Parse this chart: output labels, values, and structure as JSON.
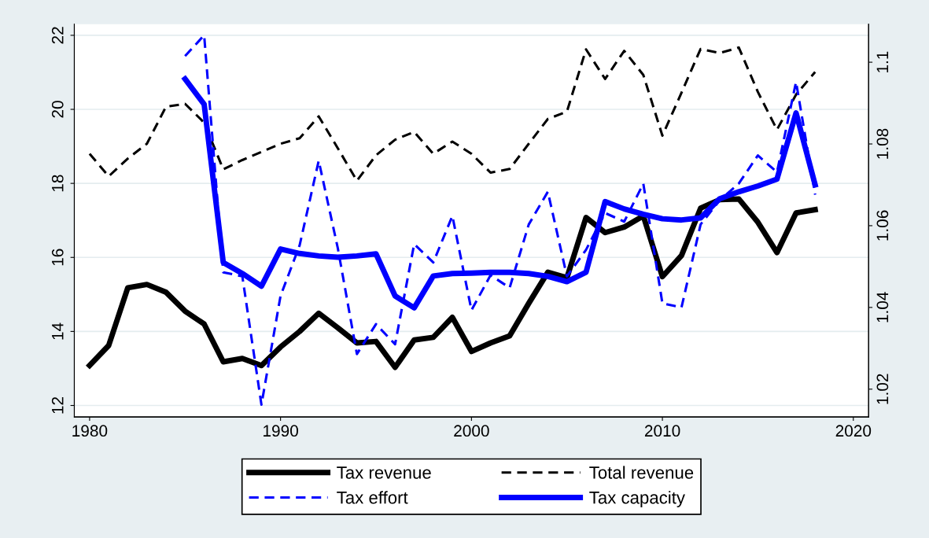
{
  "chart_data": {
    "type": "line",
    "x": [
      1980,
      1981,
      1982,
      1983,
      1984,
      1985,
      1986,
      1987,
      1988,
      1989,
      1990,
      1991,
      1992,
      1993,
      1994,
      1995,
      1996,
      1997,
      1998,
      1999,
      2000,
      2001,
      2002,
      2003,
      2004,
      2005,
      2006,
      2007,
      2008,
      2009,
      2010,
      2011,
      2012,
      2013,
      2014,
      2015,
      2016,
      2017,
      2018
    ],
    "series": [
      {
        "name": "Tax revenue",
        "color": "#000000",
        "line_style": "solid",
        "values": [
          13.08,
          13.62,
          15.18,
          15.27,
          15.06,
          14.55,
          14.2,
          13.18,
          13.27,
          13.08,
          13.58,
          14.0,
          14.49,
          14.1,
          13.69,
          13.73,
          13.03,
          13.77,
          13.84,
          14.38,
          13.46,
          13.69,
          13.88,
          14.76,
          15.6,
          15.45,
          17.08,
          16.67,
          16.82,
          17.12,
          15.48,
          16.05,
          17.33,
          17.56,
          17.58,
          16.95,
          16.13,
          17.2,
          17.29
        ]
      },
      {
        "name": "Tax effort",
        "color": "#0000ff",
        "line_style": "dashed",
        "axis": "y2",
        "values": [
          null,
          null,
          null,
          null,
          null,
          1.1015,
          1.1066,
          1.0486,
          1.0476,
          1.0162,
          1.0428,
          1.0552,
          1.0759,
          1.0545,
          1.0286,
          1.0359,
          1.031,
          1.0555,
          1.051,
          1.0624,
          1.0393,
          1.0479,
          1.0448,
          1.0603,
          1.0683,
          1.0476,
          1.0541,
          1.0631,
          1.061,
          1.0703,
          1.041,
          1.04,
          1.0603,
          1.0662,
          1.0703,
          1.0772,
          1.0731,
          1.0952,
          1.0676
        ]
      },
      {
        "name": "Total revenue",
        "color": "#000000",
        "line_style": "dashed",
        "values": [
          18.8,
          18.19,
          18.67,
          19.07,
          20.07,
          20.15,
          19.64,
          18.38,
          18.63,
          18.85,
          19.07,
          19.22,
          19.81,
          18.95,
          18.07,
          18.76,
          19.18,
          19.39,
          18.8,
          19.13,
          18.8,
          18.29,
          18.39,
          19.07,
          19.74,
          19.94,
          21.62,
          20.82,
          21.58,
          20.93,
          19.29,
          20.45,
          21.63,
          21.52,
          21.67,
          20.47,
          19.45,
          20.4,
          21.01
        ]
      },
      {
        "name": "Tax capacity",
        "color": "#0000ff",
        "line_style": "solid",
        "axis": "y2",
        "values": [
          null,
          null,
          null,
          null,
          null,
          1.0959,
          1.0897,
          1.051,
          1.0483,
          1.0452,
          1.0543,
          1.0532,
          1.0526,
          1.0523,
          1.0526,
          1.0531,
          1.0428,
          1.0399,
          1.0477,
          1.0483,
          1.0484,
          1.0486,
          1.0486,
          1.0483,
          1.0476,
          1.0463,
          1.0486,
          1.0659,
          1.0641,
          1.0628,
          1.0617,
          1.0614,
          1.0619,
          1.0666,
          1.0683,
          1.0697,
          1.0714,
          1.0876,
          1.07
        ]
      }
    ],
    "xlim": [
      1979.2,
      2020.8
    ],
    "xticks": [
      1980,
      1990,
      2000,
      2010,
      2020
    ],
    "ylim": [
      11.69,
      22.3
    ],
    "yticks": [
      12,
      14,
      16,
      18,
      20,
      22
    ],
    "y2lim": [
      1.0132,
      1.1093
    ],
    "y2ticks": [
      1.02,
      1.04,
      1.06,
      1.08,
      {
        "value": 1.1,
        "label": "1.1"
      }
    ],
    "grid": "y",
    "legend": "bottom"
  }
}
